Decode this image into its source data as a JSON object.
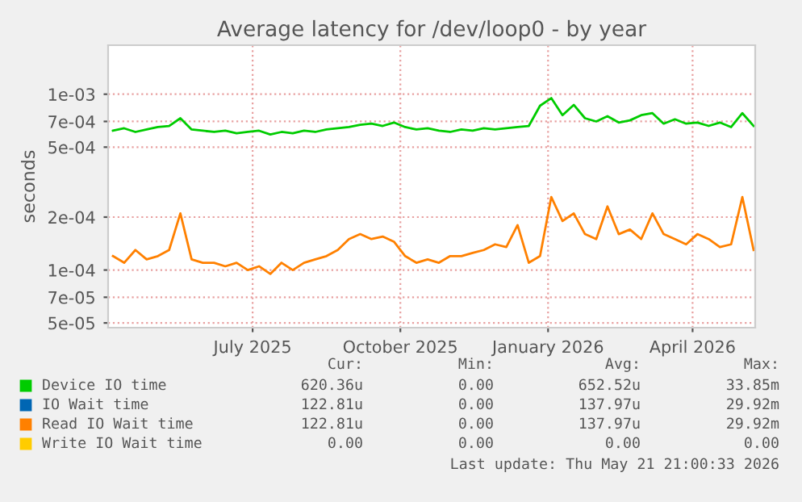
{
  "chart_data": {
    "type": "line",
    "title": "Average latency for /dev/loop0 - by year",
    "ylabel": "seconds",
    "log": "y",
    "x": [
      "2025-04-05",
      "2025-04-12",
      "2025-04-19",
      "2025-04-26",
      "2025-05-03",
      "2025-05-10",
      "2025-05-17",
      "2025-05-24",
      "2025-05-31",
      "2025-06-07",
      "2025-06-14",
      "2025-06-21",
      "2025-06-28",
      "2025-07-05",
      "2025-07-12",
      "2025-07-19",
      "2025-07-26",
      "2025-08-02",
      "2025-08-09",
      "2025-08-16",
      "2025-08-23",
      "2025-08-30",
      "2025-09-06",
      "2025-09-13",
      "2025-09-20",
      "2025-09-27",
      "2025-10-04",
      "2025-10-11",
      "2025-10-18",
      "2025-10-25",
      "2025-11-01",
      "2025-11-08",
      "2025-11-15",
      "2025-11-22",
      "2025-11-29",
      "2025-12-06",
      "2025-12-13",
      "2025-12-20",
      "2025-12-27",
      "2026-01-03",
      "2026-01-10",
      "2026-01-17",
      "2026-01-24",
      "2026-01-31",
      "2026-02-07",
      "2026-02-14",
      "2026-02-21",
      "2026-02-28",
      "2026-03-07",
      "2026-03-14",
      "2026-03-21",
      "2026-03-28",
      "2026-04-04",
      "2026-04-11",
      "2026-04-18",
      "2026-04-25",
      "2026-05-02",
      "2026-05-09"
    ],
    "series": [
      {
        "name": "Device IO time",
        "color": "#00cc00",
        "values": [
          0.00062,
          0.00064,
          0.00061,
          0.00063,
          0.00065,
          0.00066,
          0.00073,
          0.00063,
          0.00062,
          0.00061,
          0.00062,
          0.0006,
          0.00061,
          0.00062,
          0.00059,
          0.00061,
          0.0006,
          0.00062,
          0.00061,
          0.00063,
          0.00064,
          0.00065,
          0.00067,
          0.00068,
          0.00066,
          0.00069,
          0.00065,
          0.00063,
          0.00064,
          0.00062,
          0.00061,
          0.00063,
          0.00062,
          0.00064,
          0.00063,
          0.00064,
          0.00065,
          0.00066,
          0.00086,
          0.00095,
          0.00076,
          0.00087,
          0.00073,
          0.0007,
          0.00075,
          0.00069,
          0.00071,
          0.00076,
          0.00078,
          0.00068,
          0.00072,
          0.00068,
          0.00069,
          0.00066,
          0.00069,
          0.00065,
          0.00078,
          0.00066
        ]
      },
      {
        "name": "IO Wait time",
        "color": "#0066b3",
        "values": [
          null,
          null,
          null,
          null,
          null,
          null,
          null,
          null,
          null,
          null,
          null,
          null,
          null,
          null,
          null,
          null,
          null,
          null,
          null,
          null,
          null,
          null,
          null,
          null,
          null,
          null,
          null,
          null,
          null,
          null,
          null,
          null,
          null,
          null,
          null,
          null,
          null,
          null,
          null,
          null,
          null,
          null,
          null,
          null,
          null,
          null,
          null,
          null,
          null,
          null,
          null,
          null,
          null,
          null,
          null,
          null,
          null,
          null
        ]
      },
      {
        "name": "Read IO Wait time",
        "color": "#ff8000",
        "values": [
          0.00012,
          0.00011,
          0.00013,
          0.000115,
          0.00012,
          0.00013,
          0.00021,
          0.000115,
          0.00011,
          0.00011,
          0.000105,
          0.00011,
          0.0001,
          0.000105,
          9.5e-05,
          0.00011,
          0.0001,
          0.00011,
          0.000115,
          0.00012,
          0.00013,
          0.00015,
          0.00016,
          0.00015,
          0.000155,
          0.000145,
          0.00012,
          0.00011,
          0.000115,
          0.00011,
          0.00012,
          0.00012,
          0.000125,
          0.00013,
          0.00014,
          0.000135,
          0.00018,
          0.00011,
          0.00012,
          0.00026,
          0.00019,
          0.00021,
          0.00016,
          0.00015,
          0.00023,
          0.00016,
          0.00017,
          0.00015,
          0.00021,
          0.00016,
          0.00015,
          0.00014,
          0.00016,
          0.00015,
          0.000135,
          0.00014,
          0.00026,
          0.00013
        ]
      },
      {
        "name": "Write IO Wait time",
        "color": "#ffcc00",
        "values": [
          null,
          null,
          null,
          null,
          null,
          null,
          null,
          null,
          null,
          null,
          null,
          null,
          null,
          null,
          null,
          null,
          null,
          null,
          null,
          null,
          null,
          null,
          null,
          null,
          null,
          null,
          null,
          null,
          null,
          null,
          null,
          null,
          null,
          null,
          null,
          null,
          null,
          null,
          null,
          null,
          null,
          null,
          null,
          null,
          null,
          null,
          null,
          null,
          null,
          null,
          null,
          null,
          null,
          null,
          null,
          null,
          null,
          null
        ]
      }
    ],
    "xlim": [
      "2025-04-02",
      "2026-05-10"
    ],
    "xticks": [
      {
        "value": "2025-07-01",
        "label": "July 2025"
      },
      {
        "value": "2025-10-01",
        "label": "October 2025"
      },
      {
        "value": "2026-01-01",
        "label": "January 2026"
      },
      {
        "value": "2026-04-01",
        "label": "April 2026"
      }
    ],
    "ylim": [
      4.7e-05,
      0.0019
    ],
    "yticks": [
      {
        "value": 5e-05,
        "label": "5e-05"
      },
      {
        "value": 7e-05,
        "label": "7e-05"
      },
      {
        "value": 0.0001,
        "label": "1e-04"
      },
      {
        "value": 0.0002,
        "label": "2e-04"
      },
      {
        "value": 0.0005,
        "label": "5e-04"
      },
      {
        "value": 0.0007,
        "label": "7e-04"
      },
      {
        "value": 0.001,
        "label": "1e-03"
      }
    ],
    "grid": true,
    "legend": "bottom",
    "marker": "none",
    "line_style": "solid",
    "annotations": [
      "Cur:",
      "Min:",
      "Avg:",
      "Max:",
      "620.36u",
      "0.00",
      "652.52u",
      "33.85m",
      "122.81u",
      "0.00",
      "137.97u",
      "29.92m",
      "122.81u",
      "0.00",
      "137.97u",
      "29.92m",
      "0.00",
      "0.00",
      "0.00",
      "0.00",
      "Last update: Thu May 21 21:00:33 2026"
    ]
  }
}
